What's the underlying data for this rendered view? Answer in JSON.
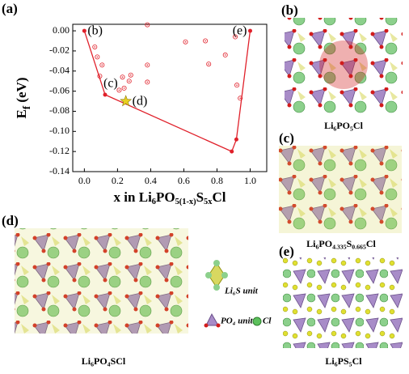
{
  "chart_data": {
    "type": "scatter",
    "panel": "(a)",
    "xlim": [
      -0.07,
      1.1
    ],
    "ylim": [
      -0.14,
      0.0065
    ],
    "xticks": [
      {
        "value": 0,
        "label": "0.0"
      },
      {
        "value": 0.2,
        "label": "0.2"
      },
      {
        "value": 0.4,
        "label": "0.4"
      },
      {
        "value": 0.6,
        "label": "0.6"
      },
      {
        "value": 0.8,
        "label": "0.8"
      },
      {
        "value": 1,
        "label": "1.0"
      }
    ],
    "yticks": [
      {
        "value": 0,
        "label": "0.00"
      },
      {
        "value": -0.02,
        "label": "-0.02"
      },
      {
        "value": -0.04,
        "label": "-0.04"
      },
      {
        "value": -0.06,
        "label": "-0.06"
      },
      {
        "value": -0.08,
        "label": "-0.08"
      },
      {
        "value": -0.1,
        "label": "-0.10"
      },
      {
        "value": -0.12,
        "label": "-0.12"
      },
      {
        "value": -0.14,
        "label": "-0.14"
      }
    ],
    "ylabel": [
      "E",
      "f",
      " (eV)"
    ],
    "xlabel": [
      "x in Li",
      "6",
      "PO",
      "5(1-x)",
      "S",
      "5x",
      "Cl"
    ],
    "annotations": [
      "(b)",
      "(c)",
      "(d)",
      "(e)"
    ],
    "series": [
      {
        "type": "line",
        "color": "#e0202a",
        "x": [
          0,
          0.125,
          0.889,
          0.917,
          1
        ],
        "values": [
          0,
          -0.0635,
          -0.12,
          -0.108,
          0
        ]
      },
      {
        "type": "scatter",
        "color": "#e0202a",
        "x": [
          0.063,
          0.078,
          0.107,
          0.093,
          0.23,
          0.24,
          0.27,
          0.28,
          0.38,
          0.38,
          0.38,
          0.61,
          0.73,
          0.75,
          0.85,
          0.91,
          0.92,
          0.94,
          0.21
        ],
        "values": [
          -0.016,
          -0.026,
          -0.034,
          -0.045,
          -0.046,
          -0.057,
          -0.05,
          -0.044,
          0.006,
          -0.034,
          -0.051,
          -0.011,
          -0.01,
          -0.033,
          -0.024,
          -0.006,
          -0.054,
          -0.067,
          -0.059
        ]
      },
      {
        "type": "star",
        "color": "#e8d020",
        "x": [
          0.25
        ],
        "values": [
          -0.07
        ]
      }
    ]
  },
  "panels": {
    "b": {
      "label": "(b)",
      "caption": [
        "Li",
        "6",
        "PO",
        "5",
        "Cl"
      ]
    },
    "c": {
      "label": "(c)",
      "caption": [
        "Li",
        "6",
        "PO",
        "4.335",
        "S",
        "0.665",
        "Cl"
      ]
    },
    "d": {
      "label": "(d)",
      "caption": [
        "Li",
        "6",
        "PO",
        "4",
        "SCl"
      ],
      "legend": {
        "li6s": "Li₆S unit",
        "po4": "PO₄ unit",
        "cl": "Cl"
      }
    },
    "e": {
      "label": "(e)",
      "caption": [
        "Li",
        "6",
        "PS",
        "5",
        "Cl"
      ]
    }
  }
}
